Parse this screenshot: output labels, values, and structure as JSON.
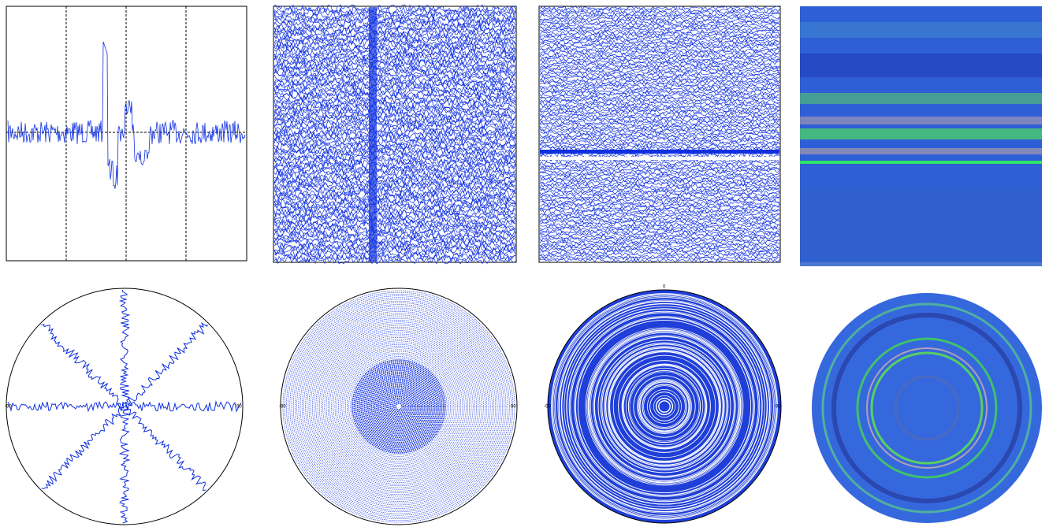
{
  "polar_plots": [
    {
      "left": "-90",
      "right": "90"
    },
    {
      "left": "-90",
      "right": "90"
    },
    {
      "top": "0",
      "left": "-90",
      "right": "90"
    },
    {}
  ]
}
